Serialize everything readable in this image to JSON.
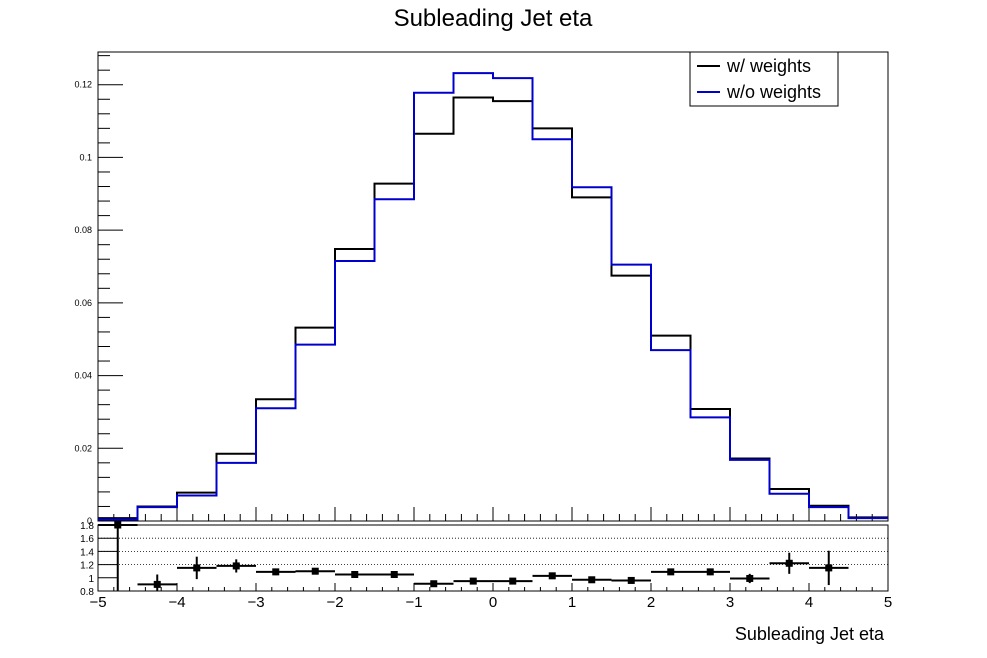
{
  "chart_data": {
    "type": "line",
    "title": "Subleading Jet eta",
    "xlabel": "Subleading Jet eta",
    "ylabel": "",
    "x_edges": [
      -5,
      -4.5,
      -4,
      -3.5,
      -3,
      -2.5,
      -2,
      -1.5,
      -1,
      -0.5,
      0,
      0.5,
      1,
      1.5,
      2,
      2.5,
      3,
      3.5,
      4,
      4.5,
      5
    ],
    "xlim": [
      -5,
      5
    ],
    "ylim": [
      0,
      0.129
    ],
    "x_ticks": [
      "−5",
      "−4",
      "−3",
      "−2",
      "−1",
      "0",
      "1",
      "2",
      "3",
      "4",
      "5"
    ],
    "y_ticks": [
      "0",
      "0.02",
      "0.04",
      "0.06",
      "0.08",
      "0.1",
      "0.12"
    ],
    "legend_position": "top-right",
    "series": [
      {
        "name": "w/ weights",
        "color": "#000000",
        "values": [
          0.0008,
          0.004,
          0.0078,
          0.0185,
          0.0335,
          0.0532,
          0.0748,
          0.0928,
          0.1065,
          0.1165,
          0.1155,
          0.108,
          0.089,
          0.0675,
          0.051,
          0.0308,
          0.0172,
          0.0088,
          0.0042,
          0.001
        ]
      },
      {
        "name": "w/o weights",
        "color": "#0000cc",
        "values": [
          0.0004,
          0.0038,
          0.007,
          0.016,
          0.031,
          0.0485,
          0.0715,
          0.0885,
          0.1178,
          0.1232,
          0.1218,
          0.105,
          0.0918,
          0.0705,
          0.047,
          0.0285,
          0.0168,
          0.0075,
          0.0038,
          0.0008
        ]
      }
    ],
    "ratio_panel": {
      "ylim": [
        0.8,
        1.8
      ],
      "y_ticks": [
        "0.8",
        "1",
        "1.2",
        "1.4",
        "1.6",
        "1.8"
      ],
      "gridlines": [
        1.2,
        1.4,
        1.6,
        1.8
      ],
      "points": [
        {
          "x": -4.75,
          "y": 1.8,
          "err": 1.2
        },
        {
          "x": -4.25,
          "y": 0.9,
          "err": 0.15
        },
        {
          "x": -3.75,
          "y": 1.15,
          "err": 0.17
        },
        {
          "x": -3.25,
          "y": 1.18,
          "err": 0.1
        },
        {
          "x": -2.75,
          "y": 1.09,
          "err": 0.05
        },
        {
          "x": -2.25,
          "y": 1.1,
          "err": 0.04
        },
        {
          "x": -1.75,
          "y": 1.05,
          "err": 0.03
        },
        {
          "x": -1.25,
          "y": 1.05,
          "err": 0.03
        },
        {
          "x": -0.75,
          "y": 0.91,
          "err": 0.02
        },
        {
          "x": -0.25,
          "y": 0.95,
          "err": 0.02
        },
        {
          "x": 0.25,
          "y": 0.95,
          "err": 0.02
        },
        {
          "x": 0.75,
          "y": 1.03,
          "err": 0.02
        },
        {
          "x": 1.25,
          "y": 0.97,
          "err": 0.02
        },
        {
          "x": 1.75,
          "y": 0.96,
          "err": 0.03
        },
        {
          "x": 2.25,
          "y": 1.09,
          "err": 0.03
        },
        {
          "x": 2.75,
          "y": 1.09,
          "err": 0.05
        },
        {
          "x": 3.25,
          "y": 0.99,
          "err": 0.07
        },
        {
          "x": 3.75,
          "y": 1.22,
          "err": 0.16
        },
        {
          "x": 4.25,
          "y": 1.15,
          "err": 0.26
        }
      ]
    }
  }
}
